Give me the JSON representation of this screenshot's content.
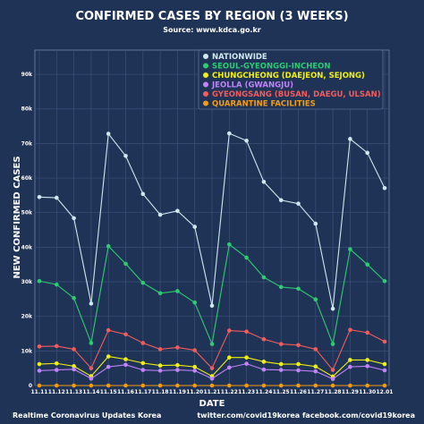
{
  "chart_data": {
    "type": "line",
    "title": "CONFIRMED CASES BY REGION (3 WEEKS)",
    "subtitle": "Source: www.kdca.go.kr",
    "xlabel": "DATE",
    "ylabel": "NEW CONFIRMED CASES",
    "ylim": [
      0,
      97000
    ],
    "yticks": [
      0,
      10000,
      20000,
      30000,
      40000,
      50000,
      60000,
      70000,
      80000,
      90000
    ],
    "ytick_labels": [
      "0",
      "10k",
      "20k",
      "30k",
      "40k",
      "50k",
      "60k",
      "70k",
      "80k",
      "90k"
    ],
    "categories": [
      "11.11",
      "11.12",
      "11.13",
      "11.14",
      "11.15",
      "11.16",
      "11.17",
      "11.18",
      "11.19",
      "11.20",
      "11.21",
      "11.22",
      "11.23",
      "11.24",
      "11.25",
      "11.26",
      "11.27",
      "11.28",
      "11.29",
      "11.30",
      "12.01"
    ],
    "grid": true,
    "legend_position": "top-right",
    "series": [
      {
        "name": "NATIONWIDE",
        "color": "#cfe8ef",
        "values": [
          54500,
          54300,
          48400,
          23700,
          72800,
          66400,
          55400,
          49400,
          50500,
          45900,
          23100,
          72900,
          70800,
          58900,
          53600,
          52600,
          46800,
          22200,
          71300,
          67300,
          57100
        ]
      },
      {
        "name": "SEOUL-GYEONGGI-INCHEON",
        "color": "#2ecc71",
        "values": [
          30200,
          29200,
          25300,
          12300,
          40300,
          35200,
          29700,
          26700,
          27300,
          24000,
          12000,
          40800,
          37000,
          31300,
          28500,
          28000,
          24900,
          12000,
          39400,
          35000,
          30200
        ]
      },
      {
        "name": "CHUNGCHEONG (DAEJEON, SEJONG)",
        "color": "#f1f10f",
        "values": [
          6200,
          6400,
          5600,
          2700,
          8400,
          7600,
          6500,
          5800,
          5900,
          5400,
          2700,
          8100,
          8100,
          6900,
          6200,
          6200,
          5500,
          2600,
          7400,
          7400,
          6200
        ]
      },
      {
        "name": "JEOLLA (GWANGJU)",
        "color": "#c084fc",
        "values": [
          4300,
          4500,
          4700,
          2000,
          5400,
          6000,
          4500,
          4300,
          4500,
          4300,
          2000,
          5200,
          6300,
          4600,
          4500,
          4400,
          4100,
          1900,
          5400,
          5600,
          4400
        ]
      },
      {
        "name": "GYEONGSANG (BUSAN, DAEGU, ULSAN)",
        "color": "#f25c5c",
        "values": [
          11300,
          11400,
          10500,
          5000,
          16000,
          14800,
          12300,
          10500,
          11000,
          10200,
          5000,
          15900,
          15600,
          13400,
          12000,
          11700,
          10500,
          4500,
          16100,
          15300,
          12700
        ]
      },
      {
        "name": "QUARANTINE FACILITIES",
        "color": "#f39c12",
        "values": [
          0,
          0,
          0,
          0,
          0,
          0,
          0,
          0,
          0,
          0,
          0,
          0,
          0,
          0,
          0,
          0,
          0,
          0,
          0,
          0,
          0
        ]
      }
    ]
  },
  "footer": {
    "left": "Realtime Coronavirus Updates Korea",
    "right": "twitter.com/covid19korea  facebook.com/covid19korea"
  }
}
